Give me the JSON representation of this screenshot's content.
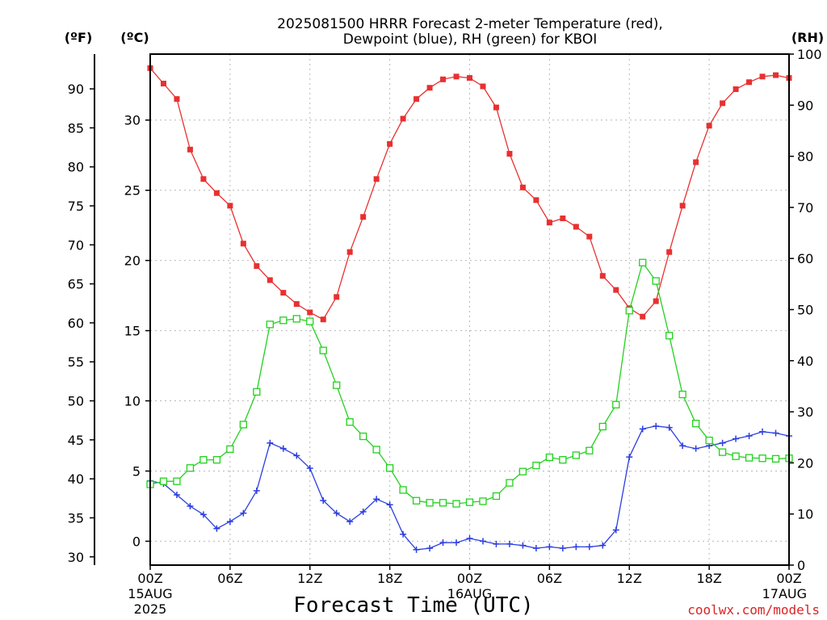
{
  "title_line1": "2025081500 HRRR Forecast 2-meter Temperature (red),",
  "title_line2": "Dewpoint (blue), RH (green) for KBOI",
  "unit_f": "(ºF)",
  "unit_c": "(ºC)",
  "unit_rh": "(RH)",
  "xlabel": "Forecast Time (UTC)",
  "credit": "coolwx.com/models",
  "colors": {
    "temperature": "#e83030",
    "dewpoint": "#2b3ee0",
    "rh": "#22d11e"
  },
  "chart_data": {
    "type": "line",
    "x_unit": "forecast hour",
    "xlim": [
      0,
      48
    ],
    "x_ticks": [
      {
        "x": 0,
        "lines": [
          "00Z",
          "15AUG",
          "2025"
        ]
      },
      {
        "x": 6,
        "lines": [
          "06Z"
        ]
      },
      {
        "x": 12,
        "lines": [
          "12Z"
        ]
      },
      {
        "x": 18,
        "lines": [
          "18Z"
        ]
      },
      {
        "x": 24,
        "lines": [
          "00Z",
          "16AUG"
        ]
      },
      {
        "x": 30,
        "lines": [
          "06Z"
        ]
      },
      {
        "x": 36,
        "lines": [
          "12Z"
        ]
      },
      {
        "x": 42,
        "lines": [
          "18Z"
        ]
      },
      {
        "x": 48,
        "lines": [
          "00Z",
          "17AUG"
        ]
      }
    ],
    "y_celsius": {
      "lim": [
        -1.7,
        34.7
      ],
      "ticks": [
        0,
        5,
        10,
        15,
        20,
        25,
        30
      ],
      "labels": [
        "0",
        "5",
        "10",
        "15",
        "20",
        "25",
        "30"
      ]
    },
    "y_fahrenheit": {
      "ticks": [
        30,
        35,
        40,
        45,
        50,
        55,
        60,
        65,
        70,
        75,
        80,
        85,
        90
      ],
      "labels": [
        "30",
        "35",
        "40",
        "45",
        "50",
        "55",
        "60",
        "65",
        "70",
        "75",
        "80",
        "85",
        "90"
      ]
    },
    "y_rh": {
      "lim": [
        0,
        100
      ],
      "ticks": [
        0,
        10,
        20,
        30,
        40,
        50,
        60,
        70,
        80,
        90,
        100
      ],
      "labels": [
        "0",
        "10",
        "20",
        "30",
        "40",
        "50",
        "60",
        "70",
        "80",
        "90",
        "100"
      ]
    },
    "grid": true,
    "series": [
      {
        "key": "temperature",
        "axis": "celsius",
        "marker": "filled-square",
        "values": [
          33.7,
          32.6,
          31.5,
          27.9,
          25.8,
          24.8,
          23.9,
          21.2,
          19.6,
          18.6,
          17.7,
          16.9,
          16.3,
          15.8,
          17.4,
          20.6,
          23.1,
          25.8,
          28.3,
          30.1,
          31.5,
          32.3,
          32.9,
          33.1,
          33.0,
          32.4,
          30.9,
          27.6,
          25.2,
          24.3,
          22.7,
          23.0,
          22.4,
          21.7,
          18.9,
          17.9,
          16.6,
          16.0,
          17.1,
          20.6,
          23.9,
          27.0,
          29.6,
          31.2,
          32.2,
          32.7,
          33.1,
          33.2,
          33.0
        ]
      },
      {
        "key": "dewpoint",
        "axis": "celsius",
        "marker": "plus",
        "values": [
          4.3,
          4.1,
          3.3,
          2.5,
          1.9,
          0.9,
          1.4,
          2.0,
          3.6,
          7.0,
          6.6,
          6.1,
          5.2,
          2.9,
          2.0,
          1.4,
          2.1,
          3.0,
          2.6,
          0.5,
          -0.6,
          -0.5,
          -0.1,
          -0.1,
          0.2,
          0.0,
          -0.2,
          -0.2,
          -0.3,
          -0.5,
          -0.4,
          -0.5,
          -0.4,
          -0.4,
          -0.3,
          0.8,
          6.0,
          8.0,
          8.2,
          8.1,
          6.8,
          6.6,
          6.8,
          7.0,
          7.3,
          7.5,
          7.8,
          7.7,
          7.5
        ]
      },
      {
        "key": "rh",
        "axis": "rh",
        "marker": "open-square",
        "values": [
          15.8,
          16.4,
          16.4,
          19.0,
          20.6,
          20.6,
          22.7,
          27.5,
          33.9,
          47.1,
          47.9,
          48.2,
          47.7,
          42.0,
          35.2,
          28.0,
          25.2,
          22.6,
          19.0,
          14.7,
          12.6,
          12.2,
          12.2,
          12.0,
          12.3,
          12.5,
          13.5,
          16.1,
          18.3,
          19.5,
          21.1,
          20.6,
          21.5,
          22.4,
          27.1,
          31.4,
          49.8,
          59.2,
          55.6,
          44.9,
          33.4,
          27.7,
          24.4,
          22.1,
          21.3,
          21.0,
          20.9,
          20.8,
          20.9
        ]
      }
    ]
  }
}
